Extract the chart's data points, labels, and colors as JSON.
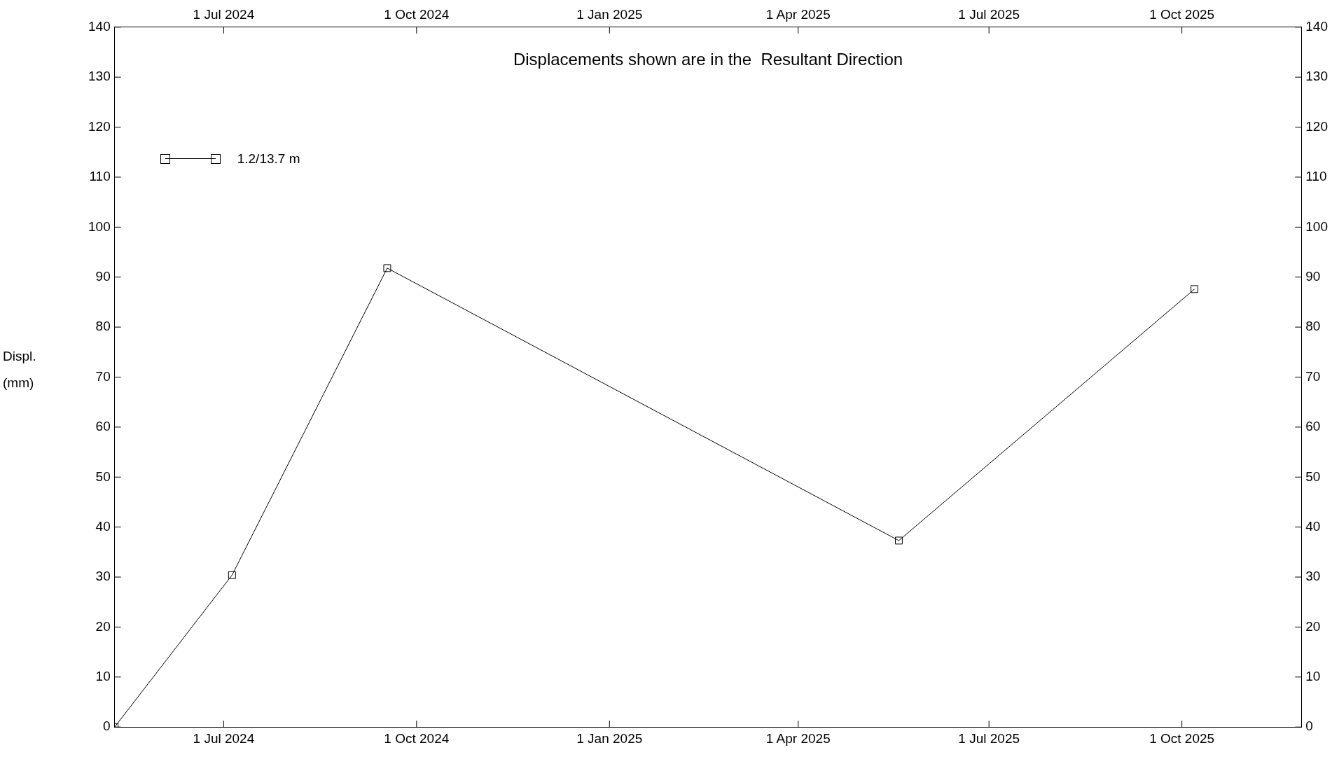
{
  "chart_data": {
    "type": "line",
    "title": "Displacements shown are in the  Resultant Direction",
    "ylabel": "Displ. (mm)",
    "x": [
      "2024-05-10",
      "2024-07-05",
      "2024-09-17",
      "2025-05-19",
      "2025-10-07"
    ],
    "series": [
      {
        "name": "1.2/13.7 m",
        "color": "#000000",
        "values": [
          0,
          30.4,
          91.8,
          37.3,
          87.6
        ]
      }
    ],
    "xlim": [
      "2024-05-10",
      "2025-11-27"
    ],
    "xticks": [
      {
        "value": "2024-07-01",
        "label": "1 Jul 2024"
      },
      {
        "value": "2024-10-01",
        "label": "1 Oct 2024"
      },
      {
        "value": "2025-01-01",
        "label": "1 Jan 2025"
      },
      {
        "value": "2025-04-01",
        "label": "1 Apr 2025"
      },
      {
        "value": "2025-07-01",
        "label": "1 Jul 2025"
      },
      {
        "value": "2025-10-01",
        "label": "1 Oct 2025"
      }
    ],
    "x2lim": [
      "2024-05-10",
      "2025-11-27"
    ],
    "x2ticks": [
      {
        "value": "2024-07-01",
        "label": "1 Jul 2024"
      },
      {
        "value": "2024-10-01",
        "label": "1 Oct 2024"
      },
      {
        "value": "2025-01-01",
        "label": "1 Jan 2025"
      },
      {
        "value": "2025-04-01",
        "label": "1 Apr 2025"
      },
      {
        "value": "2025-07-01",
        "label": "1 Jul 2025"
      },
      {
        "value": "2025-10-01",
        "label": "1 Oct 2025"
      }
    ],
    "ylim": [
      0,
      140
    ],
    "yticks": [
      0,
      10,
      20,
      30,
      40,
      50,
      60,
      70,
      80,
      90,
      100,
      110,
      120,
      130,
      140
    ],
    "y2lim": [
      0,
      140
    ],
    "y2ticks": [
      0,
      10,
      20,
      30,
      40,
      50,
      60,
      70,
      80,
      90,
      100,
      110,
      120,
      130,
      140
    ],
    "grid": false,
    "legend": "top left",
    "marker": "square",
    "line_style": "solid"
  }
}
